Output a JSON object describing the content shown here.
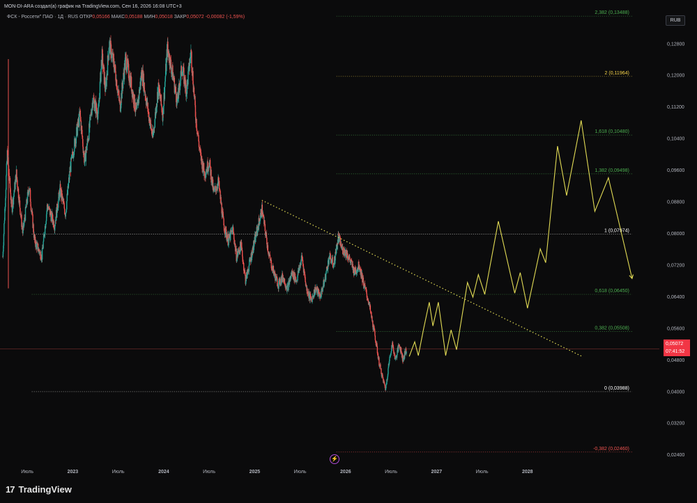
{
  "header": {
    "title": "MON-DI-ARA создал(а) график на TradingView.com, Сен 16, 2026 16:08 UTC+3"
  },
  "legend": {
    "symbol": "ФСК - Россети\" ПАО · 1Д · RUS",
    "open_label": "ОТКР",
    "open": "0,05166",
    "high_label": "МАКС",
    "high": "0,05188",
    "low_label": "МИН",
    "low": "0,05018",
    "close_label": "ЗАКР",
    "close": "0,05072",
    "change": "-0,00082 (-1,59%)"
  },
  "currency": "RUB",
  "price_tag": {
    "price": "0,05072",
    "countdown": "07:41:52"
  },
  "brand": {
    "logo": "17",
    "name": "TradingView"
  },
  "colors": {
    "background": "#0b0b0c",
    "up": "#26a69a",
    "down": "#ef5350",
    "projection": "#e3dc55",
    "trendline": "#e3dc55",
    "fib_green": "#4caf50",
    "fib_red": "#ef5350",
    "fib_white": "#ffffff",
    "fib_yellow": "#f7d54a"
  },
  "chart_data": {
    "type": "candlestick",
    "y_axis": {
      "range": [
        0.0228,
        0.1365
      ],
      "ticks": [
        "0,02400",
        "0,03200",
        "0,04000",
        "0,04800",
        "0,05600",
        "0,06400",
        "0,07200",
        "0,08000",
        "0,08800",
        "0,09600",
        "0,10400",
        "0,11200",
        "0,12000",
        "0,12800"
      ],
      "tick_values": [
        0.024,
        0.032,
        0.04,
        0.048,
        0.056,
        0.064,
        0.072,
        0.08,
        0.088,
        0.096,
        0.104,
        0.112,
        0.12,
        0.128
      ]
    },
    "x_axis": {
      "labels": [
        "Июль",
        "2023",
        "Июль",
        "2024",
        "Июль",
        "2025",
        "Июль",
        "2026",
        "Июль",
        "2027",
        "Июль",
        "2028"
      ],
      "label_dates": [
        2022.5,
        2023.0,
        2023.5,
        2024.0,
        2024.5,
        2025.0,
        2025.5,
        2026.0,
        2026.5,
        2027.0,
        2027.5,
        2028.0
      ],
      "range": [
        2022.2,
        2029.45
      ]
    },
    "price_path": [
      [
        2022.23,
        0.074
      ],
      [
        2022.28,
        0.1
      ],
      [
        2022.33,
        0.086
      ],
      [
        2022.38,
        0.095
      ],
      [
        2022.45,
        0.08
      ],
      [
        2022.52,
        0.092
      ],
      [
        2022.58,
        0.078
      ],
      [
        2022.66,
        0.074
      ],
      [
        2022.72,
        0.087
      ],
      [
        2022.8,
        0.082
      ],
      [
        2022.86,
        0.091
      ],
      [
        2022.92,
        0.085
      ],
      [
        2022.97,
        0.096
      ],
      [
        2023.03,
        0.104
      ],
      [
        2023.08,
        0.11
      ],
      [
        2023.13,
        0.098
      ],
      [
        2023.18,
        0.106
      ],
      [
        2023.22,
        0.114
      ],
      [
        2023.28,
        0.11
      ],
      [
        2023.32,
        0.125
      ],
      [
        2023.36,
        0.116
      ],
      [
        2023.4,
        0.128
      ],
      [
        2023.46,
        0.122
      ],
      [
        2023.52,
        0.112
      ],
      [
        2023.58,
        0.124
      ],
      [
        2023.64,
        0.118
      ],
      [
        2023.7,
        0.11
      ],
      [
        2023.76,
        0.121
      ],
      [
        2023.82,
        0.112
      ],
      [
        2023.88,
        0.104
      ],
      [
        2023.94,
        0.117
      ],
      [
        2023.99,
        0.11
      ],
      [
        2024.04,
        0.127
      ],
      [
        2024.1,
        0.12
      ],
      [
        2024.15,
        0.113
      ],
      [
        2024.2,
        0.122
      ],
      [
        2024.25,
        0.116
      ],
      [
        2024.3,
        0.126
      ],
      [
        2024.35,
        0.11
      ],
      [
        2024.4,
        0.1
      ],
      [
        2024.45,
        0.095
      ],
      [
        2024.5,
        0.098
      ],
      [
        2024.55,
        0.09
      ],
      [
        2024.6,
        0.093
      ],
      [
        2024.66,
        0.082
      ],
      [
        2024.71,
        0.078
      ],
      [
        2024.76,
        0.081
      ],
      [
        2024.8,
        0.074
      ],
      [
        2024.85,
        0.077
      ],
      [
        2024.9,
        0.068
      ],
      [
        2024.95,
        0.073
      ],
      [
        2025.0,
        0.078
      ],
      [
        2025.04,
        0.082
      ],
      [
        2025.08,
        0.086
      ],
      [
        2025.12,
        0.08
      ],
      [
        2025.16,
        0.074
      ],
      [
        2025.21,
        0.07
      ],
      [
        2025.26,
        0.067
      ],
      [
        2025.31,
        0.069
      ],
      [
        2025.36,
        0.066
      ],
      [
        2025.41,
        0.07
      ],
      [
        2025.46,
        0.068
      ],
      [
        2025.52,
        0.074
      ],
      [
        2025.57,
        0.066
      ],
      [
        2025.62,
        0.063
      ],
      [
        2025.67,
        0.066
      ],
      [
        2025.72,
        0.064
      ],
      [
        2025.77,
        0.068
      ],
      [
        2025.82,
        0.074
      ],
      [
        2025.87,
        0.072
      ],
      [
        2025.92,
        0.079
      ],
      [
        2025.96,
        0.076
      ],
      [
        2026.01,
        0.075
      ],
      [
        2026.05,
        0.073
      ],
      [
        2026.1,
        0.07
      ],
      [
        2026.15,
        0.072
      ],
      [
        2026.2,
        0.067
      ],
      [
        2026.25,
        0.063
      ],
      [
        2026.29,
        0.058
      ],
      [
        2026.33,
        0.053
      ],
      [
        2026.37,
        0.047
      ],
      [
        2026.41,
        0.043
      ],
      [
        2026.44,
        0.0405
      ],
      [
        2026.47,
        0.046
      ],
      [
        2026.51,
        0.052
      ],
      [
        2026.55,
        0.048
      ],
      [
        2026.59,
        0.052
      ],
      [
        2026.63,
        0.048
      ],
      [
        2026.67,
        0.0507
      ]
    ],
    "projection": [
      [
        2026.7,
        0.0488
      ],
      [
        2026.76,
        0.0525
      ],
      [
        2026.8,
        0.049
      ],
      [
        2026.86,
        0.056
      ],
      [
        2026.92,
        0.0625
      ],
      [
        2026.96,
        0.0565
      ],
      [
        2027.02,
        0.0625
      ],
      [
        2027.1,
        0.049
      ],
      [
        2027.16,
        0.0555
      ],
      [
        2027.22,
        0.0505
      ],
      [
        2027.34,
        0.0675
      ],
      [
        2027.4,
        0.0638
      ],
      [
        2027.46,
        0.0695
      ],
      [
        2027.53,
        0.0645
      ],
      [
        2027.68,
        0.083
      ],
      [
        2027.86,
        0.0648
      ],
      [
        2027.92,
        0.07
      ],
      [
        2028.0,
        0.061
      ],
      [
        2028.14,
        0.076
      ],
      [
        2028.2,
        0.0725
      ],
      [
        2028.33,
        0.102
      ],
      [
        2028.43,
        0.0895
      ],
      [
        2028.59,
        0.1085
      ],
      [
        2028.74,
        0.0855
      ],
      [
        2028.89,
        0.094
      ],
      [
        2029.15,
        0.0685
      ]
    ],
    "trendline": {
      "from": [
        2025.08,
        0.0883
      ],
      "to": [
        2028.6,
        0.0488
      ]
    },
    "fib_levels": [
      {
        "ratio": "2,382",
        "value": 0.13488,
        "label": "2,382 (0,13488)",
        "color": "#4caf50"
      },
      {
        "ratio": "2",
        "value": 0.11964,
        "label": "2 (0,11964)",
        "color": "#f7d54a"
      },
      {
        "ratio": "1,618",
        "value": 0.1048,
        "label": "1,618 (0,10480)",
        "color": "#4caf50"
      },
      {
        "ratio": "1,382",
        "value": 0.09498,
        "label": "1,382 (0,09498)",
        "color": "#4caf50"
      },
      {
        "ratio": "1",
        "value": 0.07974,
        "label": "1 (0,07974)",
        "color": "#ffffff"
      },
      {
        "ratio": "0,618",
        "value": 0.0645,
        "label": "0,618 (0,06450)",
        "color": "#4caf50"
      },
      {
        "ratio": "0,382",
        "value": 0.05508,
        "label": "0,382 (0,05508)",
        "color": "#4caf50"
      },
      {
        "ratio": "0",
        "value": 0.03988,
        "label": "0 (0,03988)",
        "color": "#ffffff"
      },
      {
        "ratio": "-0,382",
        "value": 0.0246,
        "label": "-0,382 (0,02460)",
        "color": "#ef5350"
      }
    ],
    "current_price": 0.05072
  }
}
